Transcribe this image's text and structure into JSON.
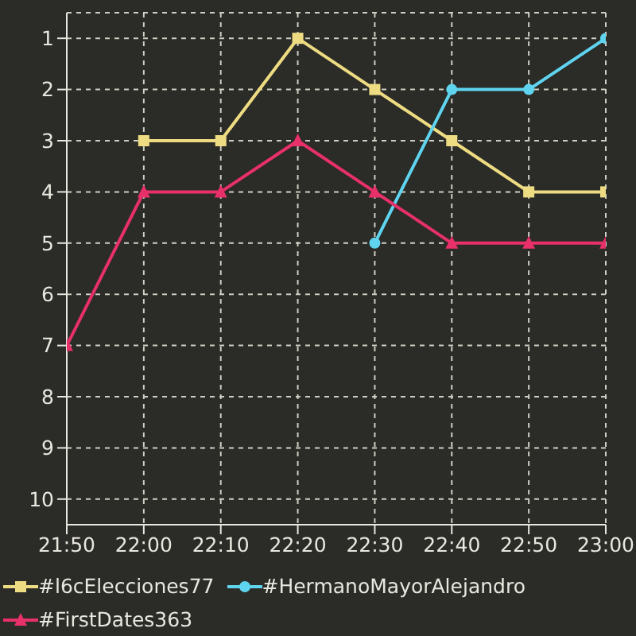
{
  "chart_data": {
    "type": "line",
    "categories": [
      "21:50",
      "22:00",
      "22:10",
      "22:20",
      "22:30",
      "22:40",
      "22:50",
      "23:00"
    ],
    "series": [
      {
        "name": "#l6cElecciones77",
        "color": "#eedc82",
        "marker": "square",
        "values": [
          null,
          3,
          3,
          1,
          2,
          3,
          4,
          4
        ]
      },
      {
        "name": "#HermanoMayorAlejandro",
        "color": "#5ed4ee",
        "marker": "circle",
        "values": [
          null,
          null,
          null,
          null,
          5,
          2,
          2,
          1
        ]
      },
      {
        "name": "#FirstDates363",
        "color": "#e8306a",
        "marker": "triangle",
        "values": [
          7,
          4,
          4,
          3,
          4,
          5,
          5,
          5
        ]
      }
    ],
    "ylim": [
      10.5,
      0.5
    ],
    "yticks": [
      1,
      2,
      3,
      4,
      5,
      6,
      7,
      8,
      9,
      10
    ],
    "grid": true,
    "legend": "bottom",
    "line_style": "solid"
  }
}
